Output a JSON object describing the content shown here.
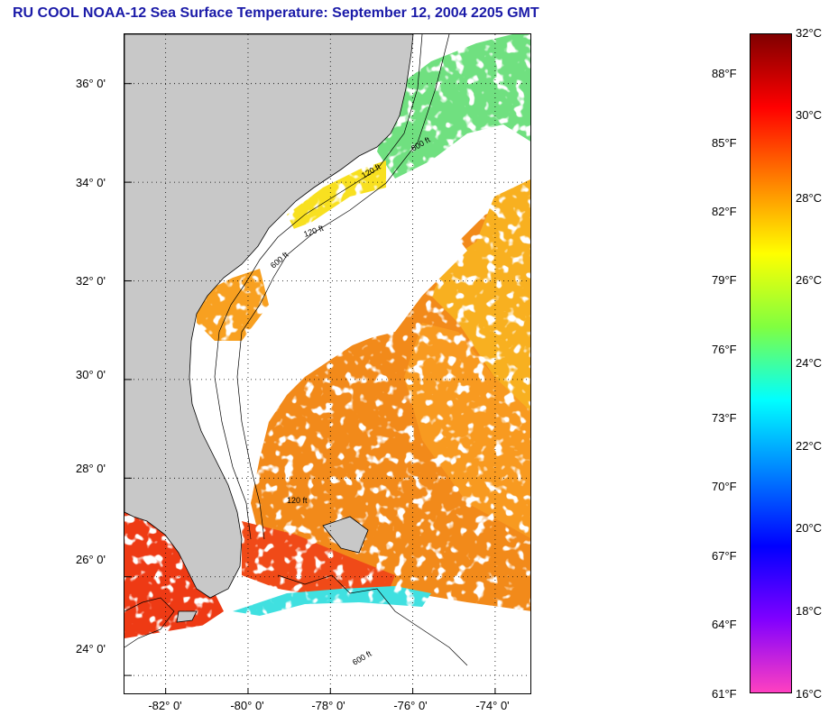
{
  "title": "RU COOL  NOAA-12  Sea Surface Temperature:  September 12, 2004 2205 GMT",
  "map": {
    "lat_ticks": [
      "36° 0'",
      "34° 0'",
      "32° 0'",
      "30° 0'",
      "28° 0'",
      "26° 0'",
      "24° 0'"
    ],
    "lon_ticks": [
      "-82° 0'",
      "-80° 0'",
      "-78° 0'",
      "-76° 0'",
      "-74° 0'"
    ],
    "lat_values": [
      36,
      34,
      32,
      30,
      28,
      26,
      24
    ],
    "lon_values": [
      -82,
      -80,
      -78,
      -76,
      -74
    ],
    "lat_range": [
      23.6,
      37.0
    ],
    "lon_range": [
      -83.0,
      -73.1
    ],
    "contour_labels": [
      "120 ft",
      "600 ft",
      "120 ft",
      "600 ft",
      "120 ft",
      "600 ft"
    ],
    "colors": {
      "land": "#c8c8c8",
      "cloud": "#ffffff",
      "warm": "#f07818",
      "hot": "#f03010"
    }
  },
  "colorbar": {
    "celsius_labels": [
      "32°C",
      "30°C",
      "28°C",
      "26°C",
      "24°C",
      "22°C",
      "20°C",
      "18°C",
      "16°C"
    ],
    "fahrenheit_labels": [
      "88°F",
      "85°F",
      "82°F",
      "79°F",
      "76°F",
      "73°F",
      "70°F",
      "67°F",
      "64°F",
      "61°F"
    ],
    "celsius_range": [
      16,
      32
    ],
    "gradient": [
      "#800000",
      "#ff0000",
      "#ff8000",
      "#ffff00",
      "#80ff40",
      "#00ffff",
      "#0080ff",
      "#0000ff",
      "#8000ff",
      "#ff40c0"
    ]
  }
}
